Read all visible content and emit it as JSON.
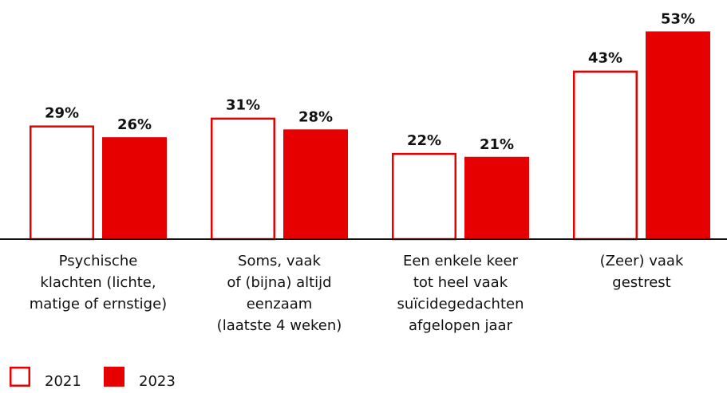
{
  "chart_data": {
    "type": "bar",
    "categories": [
      [
        "Psychische",
        "klachten (lichte,",
        "matige of ernstige)"
      ],
      [
        "Soms, vaak",
        "of (bijna) altijd",
        "eenzaam",
        "(laatste 4 weken)"
      ],
      [
        "Een enkele keer",
        "tot heel vaak",
        "suïcidegedachten",
        "afgelopen jaar"
      ],
      [
        "(Zeer) vaak",
        "gestrest"
      ]
    ],
    "series": [
      {
        "name": "2021",
        "color": "#e60000",
        "style": "outline",
        "values": [
          29,
          31,
          22,
          43
        ],
        "value_labels": [
          "29%",
          "31%",
          "22%",
          "43%"
        ]
      },
      {
        "name": "2023",
        "color": "#e60000",
        "style": "filled",
        "values": [
          26,
          28,
          21,
          53
        ],
        "value_labels": [
          "26%",
          "28%",
          "21%",
          "53%"
        ]
      }
    ],
    "ylim": [
      0,
      60
    ]
  }
}
